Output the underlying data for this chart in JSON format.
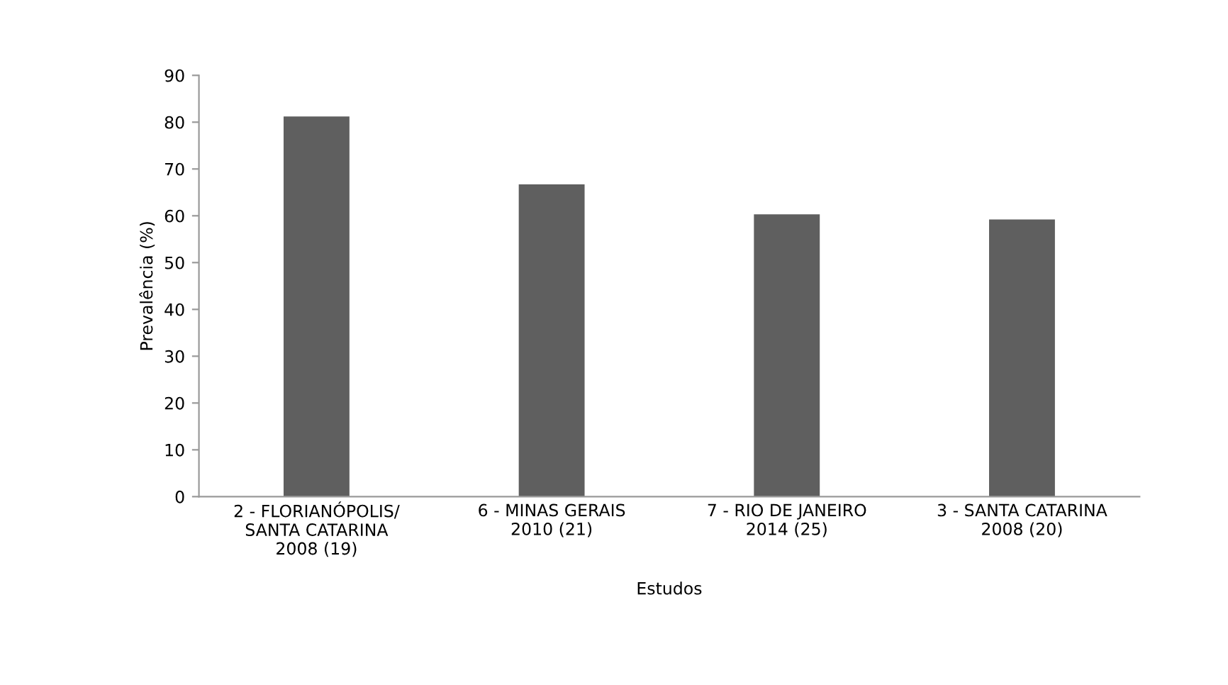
{
  "chart_data": {
    "type": "bar",
    "xlabel": "Estudos",
    "ylabel": "Prevalência (%)",
    "categories": [
      "2 - FLORIANÓPOLIS/\nSANTA CATARINA\n2008 (19)",
      "6 - MINAS GERAIS\n2010 (21)",
      "7 - RIO DE JANEIRO\n2014 (25)",
      "3 - SANTA CATARINA\n2008 (20)"
    ],
    "values": [
      81.2,
      66.7,
      60.3,
      59.2
    ],
    "color": "#5f5f5f",
    "ylim": [
      0,
      90
    ],
    "yticks": [
      0,
      10,
      20,
      30,
      40,
      50,
      60,
      70,
      80,
      90
    ],
    "grid": false,
    "legend": false
  }
}
